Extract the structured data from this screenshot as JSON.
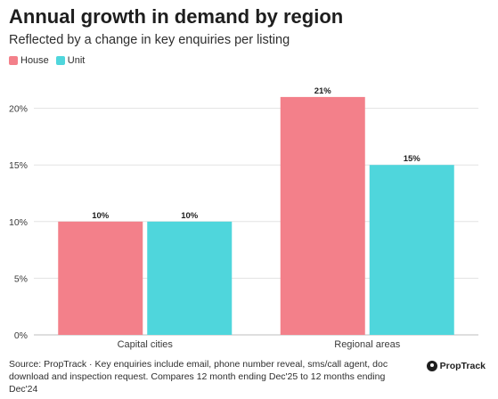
{
  "chart_data": {
    "type": "bar",
    "title": "Annual growth in demand by region",
    "subtitle": "Reflected by a change in key enquiries per listing",
    "categories": [
      "Capital cities",
      "Regional areas"
    ],
    "series": [
      {
        "name": "House",
        "values": [
          10,
          21
        ],
        "labels": [
          "10%",
          "21%"
        ],
        "color": "#f3808a"
      },
      {
        "name": "Unit",
        "values": [
          10,
          15
        ],
        "labels": [
          "10%",
          "15%"
        ],
        "color": "#4fd6dc"
      }
    ],
    "yticks": [
      0,
      5,
      10,
      15,
      20
    ],
    "ytick_labels": [
      "0%",
      "5%",
      "10%",
      "15%",
      "20%"
    ],
    "ylim": [
      0,
      22.8
    ],
    "grid": true,
    "legend_position": "top-left"
  },
  "footer": {
    "source": "Source: PropTrack · Key enquiries include email, phone number reveal, sms/call agent, doc download and inspection request. Compares 12 month ending Dec'25 to 12 months ending Dec'24",
    "brand": "PropTrack"
  }
}
